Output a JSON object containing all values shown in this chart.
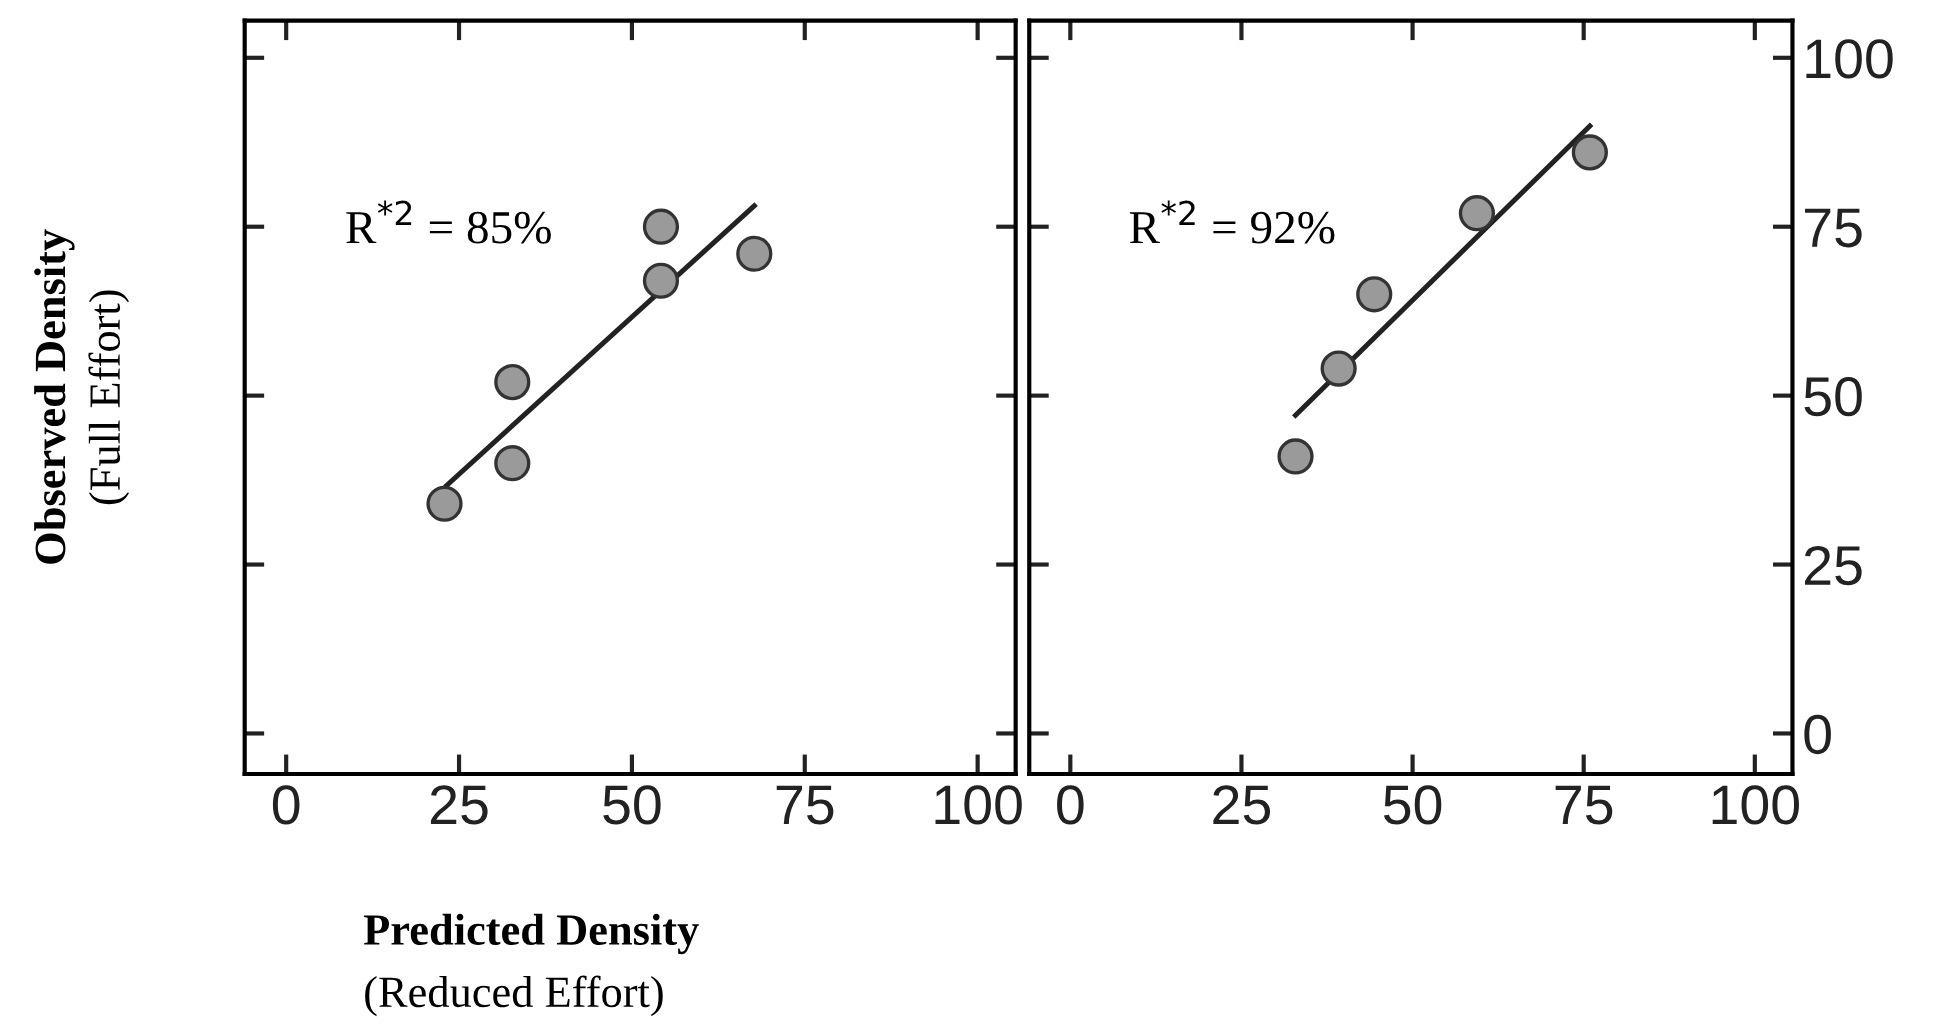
{
  "chart_data": [
    {
      "type": "scatter",
      "xlabel": "Predicted Density\n(Reduced Effort)",
      "ylabel": "Observed Density\n(Full Effort)",
      "annotations": [
        "R$^{*2}$ = 85%"
      ],
      "xlim": [
        -6,
        105.5
      ],
      "ylim": [
        -6,
        105.5
      ],
      "xticks": [
        0,
        25,
        50,
        75,
        100
      ],
      "yticks": [
        0,
        25,
        50,
        75,
        100
      ],
      "tick_labels": "x",
      "grid": false,
      "legend": false,
      "series": [
        {
          "type": "scatter",
          "marker": "circle",
          "color": "#9a9a9a",
          "x": [
            22.9,
            32.7,
            32.7,
            54.2,
            54.2,
            67.7
          ],
          "values": [
            34,
            52,
            40,
            75,
            67,
            71
          ]
        },
        {
          "type": "line",
          "line_style": "solid",
          "color": "#222222",
          "x": [
            23.2,
            67.7
          ],
          "values": [
            36.7,
            78.1
          ]
        }
      ]
    },
    {
      "type": "scatter",
      "annotations": [
        "R$^{*2}$ = 92%"
      ],
      "xlim": [
        -6,
        105.5
      ],
      "ylim": [
        -6,
        105.5
      ],
      "xticks": [
        0,
        25,
        50,
        75,
        100
      ],
      "yticks": [
        0,
        25,
        50,
        75,
        100
      ],
      "grid": false,
      "legend": false,
      "series": [
        {
          "type": "scatter",
          "marker": "circle",
          "color": "#9a9a9a",
          "x": [
            32.9,
            39.2,
            44.4,
            59.4,
            75.9
          ],
          "values": [
            41,
            54,
            65,
            77,
            86
          ]
        },
        {
          "type": "line",
          "line_style": "solid",
          "color": "#222222",
          "x": [
            32.9,
            75.9
          ],
          "values": [
            47.1,
            89.9
          ]
        }
      ]
    }
  ]
}
